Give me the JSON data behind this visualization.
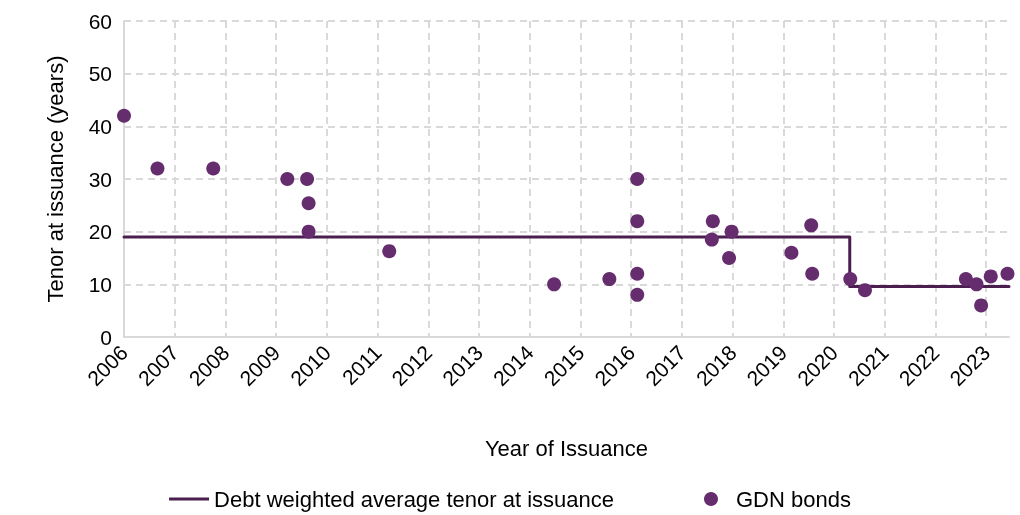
{
  "chart_data": {
    "type": "scatter",
    "xlabel": "Year of Issuance",
    "ylabel": "Tenor at issuance (years)",
    "xlim": [
      2006,
      2023.45
    ],
    "xticks": [
      2006,
      2007,
      2008,
      2009,
      2010,
      2011,
      2012,
      2013,
      2014,
      2015,
      2016,
      2017,
      2018,
      2019,
      2020,
      2021,
      2022,
      2023
    ],
    "ylim": [
      0,
      60
    ],
    "yticks": [
      0,
      10,
      20,
      30,
      40,
      50,
      60
    ],
    "grid": true,
    "legend": "bottom",
    "series": [
      {
        "name": "Debt weighted average tenor at issuance",
        "type": "line",
        "color": "#4a1e4f",
        "marker": "none",
        "line_style": "solid",
        "x": [
          2006,
          2020.31,
          2020.31,
          2023.45
        ],
        "values": [
          19,
          19,
          9.6,
          9.6
        ]
      },
      {
        "name": "GDN bonds",
        "color": "#662d6e",
        "marker": "circle",
        "x": [
          2006.0,
          2006.66,
          2007.76,
          2009.22,
          2009.61,
          2009.64,
          2009.64,
          2011.23,
          2014.48,
          2015.57,
          2016.12,
          2016.12,
          2016.12,
          2016.12,
          2017.61,
          2017.59,
          2017.98,
          2017.93,
          2019.16,
          2019.55,
          2019.57,
          2020.32,
          2020.61,
          2022.6,
          2022.81,
          2022.9,
          2023.09,
          2023.42
        ],
        "values": [
          42,
          32,
          32,
          30,
          30,
          25.4,
          20,
          16.3,
          10,
          11,
          30,
          22,
          12,
          8,
          22,
          18.5,
          20,
          15,
          16,
          21.2,
          12,
          11,
          8.9,
          11,
          10,
          6,
          11.5,
          12
        ]
      }
    ]
  }
}
